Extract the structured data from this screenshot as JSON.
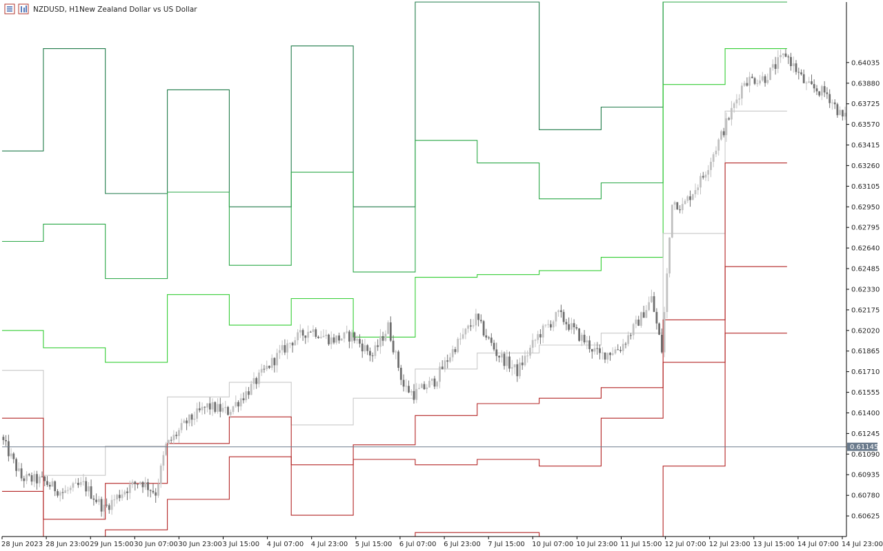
{
  "header": {
    "symbol": "NZDUSD, H1:",
    "description": "New Zealand Dollar vs US Dollar",
    "icon_menu": "menu-icon",
    "icon_chart": "chart-type-icon"
  },
  "current_price_label": "0.61145",
  "colors": {
    "bull": "#c0c0c0",
    "bear": "#6e6e6e",
    "pivot": "#c8c8c8",
    "r1": "#32cd32",
    "r2": "#28a745",
    "r3": "#1e7a48",
    "s": "#b22222",
    "current_line": "#6a7a8c",
    "axis": "#000000"
  },
  "chart_data": {
    "type": "candlestick",
    "symbol": "NZDUSD",
    "timeframe": "H1",
    "y_ticks": [
      "0.64035",
      "0.63880",
      "0.63725",
      "0.63570",
      "0.63415",
      "0.63260",
      "0.63105",
      "0.62950",
      "0.62795",
      "0.62640",
      "0.62485",
      "0.62330",
      "0.62175",
      "0.62020",
      "0.61865",
      "0.61710",
      "0.61555",
      "0.61400",
      "0.61245",
      "0.61090",
      "0.60935",
      "0.60780",
      "0.60625"
    ],
    "x_ticks": [
      "28 Jun 2023",
      "28 Jun 23:00",
      "29 Jun 15:00",
      "30 Jun 07:00",
      "30 Jun 23:00",
      "3 Jul 15:00",
      "4 Jul 07:00",
      "4 Jul 23:00",
      "5 Jul 15:00",
      "6 Jul 07:00",
      "6 Jul 23:00",
      "7 Jul 15:00",
      "10 Jul 07:00",
      "10 Jul 23:00",
      "11 Jul 15:00",
      "12 Jul 07:00",
      "12 Jul 23:00",
      "13 Jul 15:00",
      "14 Jul 07:00",
      "14 Jul 23:00"
    ],
    "y_range": [
      0.6047,
      0.6449
    ],
    "current_price": 0.61145,
    "pivot_levels": {
      "bar_breaks": [
        0,
        16,
        40,
        64,
        88,
        112,
        136,
        160,
        184,
        208,
        232,
        256,
        280,
        304
      ],
      "lines": [
        {
          "name": "R3",
          "color_key": "r3",
          "values": [
            0.6337,
            0.6414,
            0.6305,
            0.6383,
            0.6295,
            0.6416,
            0.6295,
            0.647,
            0.65,
            0.6353,
            0.637,
            0.65,
            0.65
          ]
        },
        {
          "name": "R2",
          "color_key": "r2",
          "values": [
            0.6269,
            0.6282,
            0.6241,
            0.6306,
            0.6251,
            0.6321,
            0.6246,
            0.6345,
            0.6328,
            0.6301,
            0.6313,
            0.65,
            0.65
          ]
        },
        {
          "name": "R1",
          "color_key": "r1",
          "values": [
            0.6202,
            0.6189,
            0.6178,
            0.6229,
            0.6206,
            0.6226,
            0.6197,
            0.6242,
            0.6244,
            0.6247,
            0.6257,
            0.6387,
            0.6414
          ]
        },
        {
          "name": "P",
          "color_key": "pivot",
          "values": [
            0.6172,
            0.6093,
            0.6115,
            0.6152,
            0.6163,
            0.6131,
            0.6151,
            0.6173,
            0.6185,
            0.6191,
            0.62,
            0.6275,
            0.6367
          ]
        },
        {
          "name": "S1",
          "color_key": "s",
          "values": [
            0.6136,
            0.606,
            0.6087,
            0.6117,
            0.6137,
            0.6101,
            0.6116,
            0.6138,
            0.6147,
            0.6151,
            0.6159,
            0.621,
            0.6328
          ]
        },
        {
          "name": "S2",
          "color_key": "s",
          "values": [
            0.6081,
            0.6,
            0.6052,
            0.6075,
            0.6107,
            0.6063,
            0.6105,
            0.6101,
            0.6105,
            0.61,
            0.6136,
            0.6178,
            0.625
          ]
        },
        {
          "name": "S3",
          "color_key": "s",
          "values": [
            0.604,
            0.6,
            0.6,
            0.603,
            0.604,
            0.6022,
            0.6036,
            0.605,
            0.605,
            0.604,
            0.604,
            0.61,
            0.62
          ]
        }
      ]
    },
    "candle_anchors": [
      [
        0,
        0.6122
      ],
      [
        8,
        0.6091
      ],
      [
        16,
        0.6089
      ],
      [
        24,
        0.608
      ],
      [
        32,
        0.6086
      ],
      [
        40,
        0.6068
      ],
      [
        48,
        0.6082
      ],
      [
        54,
        0.6089
      ],
      [
        60,
        0.608
      ],
      [
        64,
        0.6115
      ],
      [
        72,
        0.6133
      ],
      [
        80,
        0.6145
      ],
      [
        88,
        0.6141
      ],
      [
        96,
        0.6157
      ],
      [
        104,
        0.6176
      ],
      [
        112,
        0.6193
      ],
      [
        120,
        0.6203
      ],
      [
        128,
        0.6195
      ],
      [
        136,
        0.6198
      ],
      [
        144,
        0.6183
      ],
      [
        150,
        0.6205
      ],
      [
        156,
        0.616
      ],
      [
        160,
        0.6154
      ],
      [
        168,
        0.6164
      ],
      [
        176,
        0.619
      ],
      [
        184,
        0.6211
      ],
      [
        192,
        0.6185
      ],
      [
        200,
        0.6171
      ],
      [
        208,
        0.6198
      ],
      [
        216,
        0.6214
      ],
      [
        224,
        0.6198
      ],
      [
        232,
        0.6183
      ],
      [
        240,
        0.6189
      ],
      [
        248,
        0.6212
      ],
      [
        252,
        0.6226
      ],
      [
        256,
        0.6187
      ],
      [
        260,
        0.63
      ],
      [
        264,
        0.6295
      ],
      [
        272,
        0.6318
      ],
      [
        280,
        0.6353
      ],
      [
        288,
        0.639
      ],
      [
        296,
        0.6392
      ],
      [
        304,
        0.641
      ],
      [
        312,
        0.6386
      ],
      [
        320,
        0.638
      ],
      [
        326,
        0.6362
      ]
    ]
  }
}
